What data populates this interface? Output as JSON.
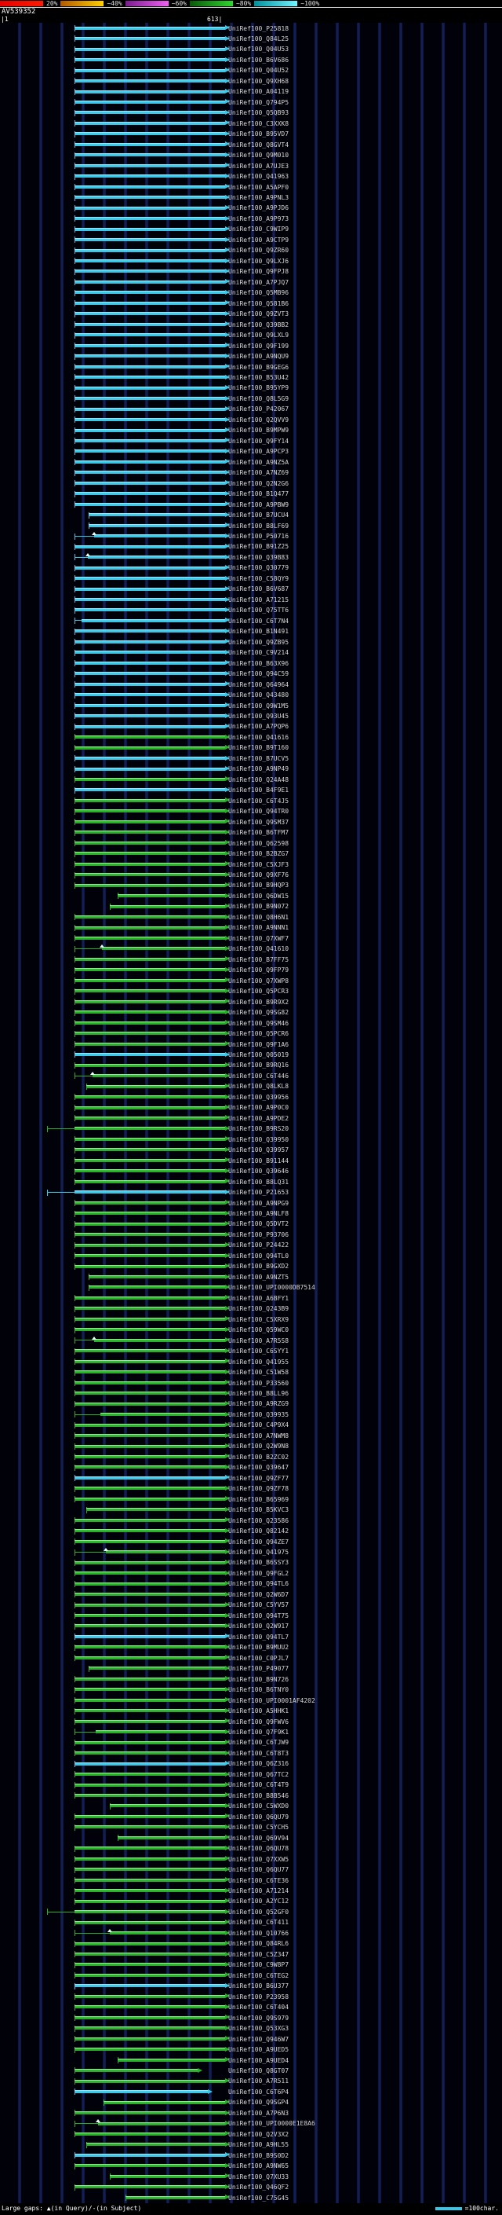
{
  "legend": {
    "gaps_text": "Large gaps: ▲(in Query)/-(in Subject)",
    "scale_text": "=100char."
  },
  "chart_data": {
    "type": "bar",
    "title": "AV539352",
    "x_range": [
      1,
      613
    ],
    "ruler_labels": [
      "|1",
      "613|"
    ],
    "orientation": "horizontal",
    "label_prefix": "UniRef100_",
    "identity_scale": {
      "labels": [
        "20%",
        "~40%",
        "~60%",
        "~80%",
        "~100%"
      ],
      "block_colors": [
        [
          "#e80000",
          "#ff1a00"
        ],
        [
          "#b35900",
          "#ffd000"
        ],
        [
          "#7a1d8f",
          "#f060f0"
        ],
        [
          "#0a5a0a",
          "#2ed62e"
        ],
        [
          "#00909c",
          "#72f5ff"
        ]
      ]
    },
    "colors": {
      "cyan": "#35c8e8",
      "cyan_light": "#b8f0ff",
      "green": "#25b025",
      "green_light": "#b8ffb8"
    },
    "rows": [
      {
        "l": "P25818",
        "c": "c"
      },
      {
        "l": "Q84L25",
        "c": "c"
      },
      {
        "l": "Q04U53",
        "c": "c"
      },
      {
        "l": "B6V686",
        "c": "c"
      },
      {
        "l": "Q04U52",
        "c": "c"
      },
      {
        "l": "Q9XH68",
        "c": "c"
      },
      {
        "l": "A04119",
        "c": "c"
      },
      {
        "l": "Q794P5",
        "c": "c"
      },
      {
        "l": "Q5QB93",
        "c": "c"
      },
      {
        "l": "C3XXK8",
        "c": "c"
      },
      {
        "l": "B95VD7",
        "c": "c"
      },
      {
        "l": "Q8GVT4",
        "c": "c"
      },
      {
        "l": "Q9M010",
        "c": "c"
      },
      {
        "l": "A7UJE3",
        "c": "c"
      },
      {
        "l": "Q41963",
        "c": "c"
      },
      {
        "l": "A5APF0",
        "c": "c"
      },
      {
        "l": "A9PNL3",
        "c": "c"
      },
      {
        "l": "A9PJD6",
        "c": "c"
      },
      {
        "l": "A9P973",
        "c": "c"
      },
      {
        "l": "C9WIP9",
        "c": "c"
      },
      {
        "l": "A9CTP9",
        "c": "c"
      },
      {
        "l": "Q9ZR60",
        "c": "c"
      },
      {
        "l": "Q9LXJ6",
        "c": "c"
      },
      {
        "l": "Q9FPJ8",
        "c": "c"
      },
      {
        "l": "A7PJQ7",
        "c": "c"
      },
      {
        "l": "Q5MB96",
        "c": "c"
      },
      {
        "l": "Q581B6",
        "c": "c"
      },
      {
        "l": "Q9ZVT3",
        "c": "c"
      },
      {
        "l": "Q39BB2",
        "c": "c"
      },
      {
        "l": "Q9LXL9",
        "c": "c"
      },
      {
        "l": "Q9F199",
        "c": "c"
      },
      {
        "l": "A9NQU9",
        "c": "c"
      },
      {
        "l": "B9GEG6",
        "c": "c"
      },
      {
        "l": "B53U42",
        "c": "c"
      },
      {
        "l": "B95YP9",
        "c": "c"
      },
      {
        "l": "Q8L5G9",
        "c": "c"
      },
      {
        "l": "P42067",
        "c": "c"
      },
      {
        "l": "Q2QVV9",
        "c": "c"
      },
      {
        "l": "B9MPW9",
        "c": "c"
      },
      {
        "l": "Q9FY14",
        "c": "c"
      },
      {
        "l": "A9PCP3",
        "c": "c"
      },
      {
        "l": "A9NZ5A",
        "c": "c"
      },
      {
        "l": "A7NZ69",
        "c": "c"
      },
      {
        "l": "Q2N2G6",
        "c": "c"
      },
      {
        "l": "B1Q477",
        "c": "c"
      },
      {
        "l": "A9PBW9",
        "c": "c"
      },
      {
        "l": "B7UCU4",
        "c": "c",
        "s": 113
      },
      {
        "l": "B8LF69",
        "c": "c",
        "s": 113
      },
      {
        "l": "P50716",
        "c": "c",
        "t": 120,
        "m": [
          120
        ]
      },
      {
        "l": "B91Z25",
        "c": "c"
      },
      {
        "l": "Q39B83",
        "c": "c",
        "t": 112,
        "m": [
          112
        ]
      },
      {
        "l": "Q30779",
        "c": "c"
      },
      {
        "l": "C58QY9",
        "c": "c"
      },
      {
        "l": "B6V687",
        "c": "c"
      },
      {
        "l": "A71215",
        "c": "c"
      },
      {
        "l": "Q75TT6",
        "c": "c"
      },
      {
        "l": "C6T7N4",
        "c": "c",
        "t": 104
      },
      {
        "l": "B1N491",
        "c": "c"
      },
      {
        "l": "Q9ZB95",
        "c": "c"
      },
      {
        "l": "C9V214",
        "c": "c"
      },
      {
        "l": "B63X96",
        "c": "c"
      },
      {
        "l": "Q94C59",
        "c": "c"
      },
      {
        "l": "Q64964",
        "c": "c"
      },
      {
        "l": "Q43480",
        "c": "c"
      },
      {
        "l": "Q9W1M5",
        "c": "c"
      },
      {
        "l": "Q93U45",
        "c": "c"
      },
      {
        "l": "A7PQP6",
        "c": "c"
      },
      {
        "l": "Q41616",
        "c": "g"
      },
      {
        "l": "B9T160",
        "c": "g"
      },
      {
        "l": "B7UCV5",
        "c": "c"
      },
      {
        "l": "A9NP49",
        "c": "c"
      },
      {
        "l": "Q24A48",
        "c": "g"
      },
      {
        "l": "B4F9E1",
        "c": "c"
      },
      {
        "l": "C6T4J5",
        "c": "g"
      },
      {
        "l": "Q94TR0",
        "c": "g"
      },
      {
        "l": "Q9SM37",
        "c": "g"
      },
      {
        "l": "B6TFM7",
        "c": "g"
      },
      {
        "l": "Q62598",
        "c": "g"
      },
      {
        "l": "B2BZG7",
        "c": "g"
      },
      {
        "l": "C5XJF3",
        "c": "g"
      },
      {
        "l": "Q9XF76",
        "c": "g"
      },
      {
        "l": "B9HQP3",
        "c": "g"
      },
      {
        "l": "Q6DW15",
        "c": "g",
        "s": 150
      },
      {
        "l": "B9N072",
        "c": "g",
        "s": 140
      },
      {
        "l": "Q8H6N1",
        "c": "g"
      },
      {
        "l": "A9NNN1",
        "c": "g"
      },
      {
        "l": "Q7XWF7",
        "c": "g"
      },
      {
        "l": "Q41610",
        "c": "g",
        "t": 130,
        "m": [
          130
        ]
      },
      {
        "l": "B7FF75",
        "c": "g"
      },
      {
        "l": "Q9FP79",
        "c": "g"
      },
      {
        "l": "Q7XWP8",
        "c": "g"
      },
      {
        "l": "Q5PCR3",
        "c": "g"
      },
      {
        "l": "B9R9X2",
        "c": "g"
      },
      {
        "l": "Q9SG82",
        "c": "g"
      },
      {
        "l": "Q9SM46",
        "c": "g"
      },
      {
        "l": "Q5PCR6",
        "c": "g"
      },
      {
        "l": "Q9F1A6",
        "c": "g"
      },
      {
        "l": "Q05019",
        "c": "c"
      },
      {
        "l": "B9RQ16",
        "c": "g"
      },
      {
        "l": "C6T446",
        "c": "g",
        "t": 118,
        "m": [
          118
        ]
      },
      {
        "l": "Q8LKL8",
        "c": "g",
        "s": 110
      },
      {
        "l": "Q39956",
        "c": "g"
      },
      {
        "l": "A9P0C0",
        "c": "g"
      },
      {
        "l": "A9PDE2",
        "c": "g"
      },
      {
        "l": "B9RS20",
        "c": "g",
        "s": 60,
        "t": 95
      },
      {
        "l": "Q39950",
        "c": "g"
      },
      {
        "l": "Q39957",
        "c": "g"
      },
      {
        "l": "B91144",
        "c": "g"
      },
      {
        "l": "Q39646",
        "c": "g"
      },
      {
        "l": "B8LQ31",
        "c": "g"
      },
      {
        "l": "P21653",
        "c": "c",
        "s": 60,
        "t": 95
      },
      {
        "l": "A9NPG9",
        "c": "g"
      },
      {
        "l": "A9NLF8",
        "c": "g"
      },
      {
        "l": "Q5DVT2",
        "c": "g"
      },
      {
        "l": "P93706",
        "c": "g"
      },
      {
        "l": "P24422",
        "c": "g"
      },
      {
        "l": "Q94TL0",
        "c": "g"
      },
      {
        "l": "B9GXD2",
        "c": "g"
      },
      {
        "l": "A9NZT5",
        "c": "g",
        "s": 113
      },
      {
        "l": "UPI0000DB7514",
        "c": "g",
        "s": 113
      },
      {
        "l": "A6BFY1",
        "c": "g"
      },
      {
        "l": "Q243B9",
        "c": "g"
      },
      {
        "l": "C5XRX9",
        "c": "g"
      },
      {
        "l": "Q59WC0",
        "c": "g"
      },
      {
        "l": "A7R5S8",
        "c": "g",
        "t": 120,
        "m": [
          120
        ]
      },
      {
        "l": "C6SYY1",
        "c": "g"
      },
      {
        "l": "Q41955",
        "c": "g"
      },
      {
        "l": "C51W58",
        "c": "g"
      },
      {
        "l": "P33560",
        "c": "g"
      },
      {
        "l": "B8LL96",
        "c": "g"
      },
      {
        "l": "A9RZG9",
        "c": "g"
      },
      {
        "l": "Q39935",
        "c": "g",
        "t": 128
      },
      {
        "l": "C4P9X4",
        "c": "g"
      },
      {
        "l": "A7NWM8",
        "c": "g"
      },
      {
        "l": "Q2W9N8",
        "c": "g"
      },
      {
        "l": "B2ZC02",
        "c": "g"
      },
      {
        "l": "Q39647",
        "c": "g"
      },
      {
        "l": "Q9ZF77",
        "c": "c"
      },
      {
        "l": "Q9ZF78",
        "c": "g"
      },
      {
        "l": "B65969",
        "c": "g"
      },
      {
        "l": "B5KVC3",
        "c": "g",
        "s": 110
      },
      {
        "l": "Q23586",
        "c": "g"
      },
      {
        "l": "Q82142",
        "c": "g"
      },
      {
        "l": "Q94ZE7",
        "c": "g"
      },
      {
        "l": "Q41975",
        "c": "g",
        "t": 135,
        "m": [
          135
        ]
      },
      {
        "l": "B6SSY3",
        "c": "g"
      },
      {
        "l": "Q9FGL2",
        "c": "g"
      },
      {
        "l": "Q94TL6",
        "c": "g"
      },
      {
        "l": "Q2W6D7",
        "c": "g"
      },
      {
        "l": "C5YV57",
        "c": "g"
      },
      {
        "l": "Q94T75",
        "c": "g"
      },
      {
        "l": "Q2W917",
        "c": "g"
      },
      {
        "l": "Q94TL7",
        "c": "c"
      },
      {
        "l": "B9MUU2",
        "c": "g"
      },
      {
        "l": "C0PJL7",
        "c": "g"
      },
      {
        "l": "P49077",
        "c": "g",
        "s": 113
      },
      {
        "l": "B9N726",
        "c": "g"
      },
      {
        "l": "B6TNY0",
        "c": "g"
      },
      {
        "l": "UPI0001AF4202",
        "c": "g"
      },
      {
        "l": "A5HHK1",
        "c": "g"
      },
      {
        "l": "Q9FWV6",
        "c": "g"
      },
      {
        "l": "Q7F9K1",
        "c": "g",
        "t": 122
      },
      {
        "l": "C6TJW9",
        "c": "g"
      },
      {
        "l": "C6T8T3",
        "c": "g"
      },
      {
        "l": "Q6Z316",
        "c": "c"
      },
      {
        "l": "Q67TC2",
        "c": "g"
      },
      {
        "l": "C6T4T9",
        "c": "g"
      },
      {
        "l": "B8B546",
        "c": "g"
      },
      {
        "l": "C5WXD0",
        "c": "g",
        "s": 140
      },
      {
        "l": "Q6QU79",
        "c": "g"
      },
      {
        "l": "C5YCH5",
        "c": "g"
      },
      {
        "l": "Q69V94",
        "c": "g",
        "s": 150
      },
      {
        "l": "Q6QU78",
        "c": "g"
      },
      {
        "l": "Q7XXW5",
        "c": "g"
      },
      {
        "l": "Q6QU77",
        "c": "g"
      },
      {
        "l": "C6TE36",
        "c": "g"
      },
      {
        "l": "A71214",
        "c": "g"
      },
      {
        "l": "A2YC12",
        "c": "g"
      },
      {
        "l": "Q52GF0",
        "c": "g",
        "s": 60,
        "t": 95
      },
      {
        "l": "C6T411",
        "c": "g"
      },
      {
        "l": "Q10766",
        "c": "g",
        "t": 140,
        "m": [
          140
        ]
      },
      {
        "l": "Q84RL6",
        "c": "g"
      },
      {
        "l": "C5Z347",
        "c": "g"
      },
      {
        "l": "C9W8P7",
        "c": "g"
      },
      {
        "l": "C6TEG2",
        "c": "g"
      },
      {
        "l": "B6U377",
        "c": "c"
      },
      {
        "l": "P23958",
        "c": "g"
      },
      {
        "l": "C6T404",
        "c": "g"
      },
      {
        "l": "Q9S979",
        "c": "g"
      },
      {
        "l": "Q53XG3",
        "c": "g"
      },
      {
        "l": "Q946W7",
        "c": "g"
      },
      {
        "l": "A9UED5",
        "c": "g"
      },
      {
        "l": "A9UED4",
        "c": "g",
        "s": 150
      },
      {
        "l": "Q8GT07",
        "c": "g",
        "e": 252
      },
      {
        "l": "A7R511",
        "c": "g"
      },
      {
        "l": "C6T6P4",
        "c": "c",
        "e": 265
      },
      {
        "l": "Q9SGP4",
        "c": "g",
        "s": 132
      },
      {
        "l": "A7P6N3",
        "c": "g"
      },
      {
        "l": "UPI0000E1E8A6",
        "c": "g",
        "t": 125,
        "m": [
          125
        ]
      },
      {
        "l": "Q2V3X2",
        "c": "g"
      },
      {
        "l": "A9HL55",
        "c": "g",
        "s": 110
      },
      {
        "l": "B9S0D2",
        "c": "c"
      },
      {
        "l": "A9NW65",
        "c": "g"
      },
      {
        "l": "Q7XU33",
        "c": "g",
        "s": 140
      },
      {
        "l": "Q46QF2",
        "c": "g"
      },
      {
        "l": "C75G45",
        "c": "g",
        "s": 160
      }
    ]
  }
}
